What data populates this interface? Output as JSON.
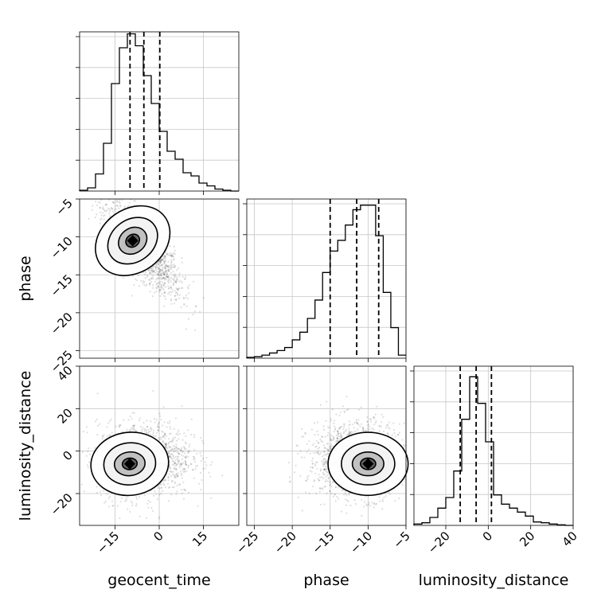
{
  "chart_data": {
    "type": "corner",
    "parameters": [
      "geocent_time",
      "phase",
      "luminosity_distance"
    ],
    "xlabels": [
      "geocent_time",
      "phase",
      "luminosity_distance"
    ],
    "ylabels": [
      "",
      "phase",
      "luminosity_distance"
    ],
    "grid": true,
    "ranges": {
      "geocent_time": [
        -27,
        27
      ],
      "phase": [
        -26,
        -5
      ],
      "luminosity_distance": [
        -35,
        40
      ]
    },
    "ticks": {
      "geocent_time": [
        -15,
        0,
        15
      ],
      "phase_x": [
        -25,
        -20,
        -15,
        -10,
        -5
      ],
      "phase_y": [
        -5,
        -10,
        -15,
        -20,
        -25
      ],
      "luminosity_distance_x": [
        -20,
        0,
        20,
        40
      ],
      "luminosity_distance_y": [
        40,
        20,
        0,
        -20
      ]
    },
    "tick_labels": {
      "geocent_time": [
        "−15",
        "0",
        "15"
      ],
      "phase_x": [
        "−25",
        "−20",
        "−15",
        "−10",
        "−5"
      ],
      "phase_y": [
        "−5",
        "−10",
        "−15",
        "−20",
        "−25"
      ],
      "luminosity_distance_x": [
        "−20",
        "0",
        "20",
        "40"
      ],
      "luminosity_distance_y": [
        "40",
        "20",
        "0",
        "−20"
      ]
    },
    "histograms": [
      {
        "parameter": "geocent_time",
        "bin_edges": [
          -27,
          -24.3,
          -21.6,
          -18.9,
          -16.2,
          -13.5,
          -10.8,
          -8.1,
          -5.4,
          -2.7,
          0,
          2.7,
          5.4,
          8.1,
          10.8,
          13.5,
          16.2,
          18.9,
          21.6,
          24.3,
          27
        ],
        "counts": [
          0.2,
          0.8,
          4.3,
          12,
          27,
          36,
          39.5,
          36.5,
          29,
          22,
          15,
          10,
          8,
          4.6,
          3.8,
          2,
          1.3,
          0.5,
          0.2,
          0
        ],
        "quantiles": [
          -9.9,
          -5.2,
          0.2
        ],
        "ymax": 40
      },
      {
        "parameter": "phase",
        "bin_edges": [
          -26,
          -25,
          -24,
          -23,
          -22,
          -21,
          -20,
          -19,
          -18,
          -17,
          -16,
          -15,
          -14,
          -13,
          -12,
          -11,
          -10,
          -9,
          -8,
          -7,
          -6,
          -5
        ],
        "counts": [
          0.3,
          0.5,
          1,
          1.7,
          2.5,
          3.5,
          6,
          8.5,
          13,
          19,
          28,
          35,
          38.5,
          43.5,
          48.5,
          50,
          50,
          40,
          21.5,
          10,
          1
        ],
        "quantiles": [
          -15,
          -11.5,
          -8.6
        ],
        "ymax": 52
      },
      {
        "parameter": "luminosity_distance",
        "bin_edges": [
          -35,
          -31.25,
          -27.5,
          -23.75,
          -20,
          -16.25,
          -12.5,
          -8.75,
          -5,
          -1.25,
          2.5,
          6.25,
          10,
          13.75,
          17.5,
          21.25,
          25,
          28.75,
          32.5,
          36.25,
          40
        ],
        "counts": [
          0.5,
          1,
          3,
          6.5,
          10.5,
          20.5,
          40,
          56,
          46,
          31.5,
          11.5,
          8,
          6.5,
          5,
          3.5,
          1.3,
          1,
          0.5,
          0.2,
          0
        ],
        "quantiles": [
          -13.2,
          -5.7,
          1.5
        ],
        "ymax": 60
      }
    ],
    "joint_distributions": [
      {
        "x": "geocent_time",
        "y": "phase",
        "mean": [
          -5.5,
          -11.5
        ],
        "sd": [
          6.5,
          3.2
        ],
        "correlation": -0.8,
        "peak": [
          -9,
          -10.5
        ]
      },
      {
        "x": "geocent_time",
        "y": "luminosity_distance",
        "mean": [
          -5,
          -4
        ],
        "sd": [
          8,
          9
        ],
        "correlation": 0.05,
        "peak": [
          -10,
          -6
        ]
      },
      {
        "x": "phase",
        "y": "luminosity_distance",
        "mean": [
          -11.5,
          -4
        ],
        "sd": [
          3.2,
          9
        ],
        "correlation": 0.0,
        "peak": [
          -10,
          -6
        ]
      }
    ],
    "density_levels": [
      "0.5",
      "1.0",
      "1.5",
      "2.0"
    ]
  }
}
